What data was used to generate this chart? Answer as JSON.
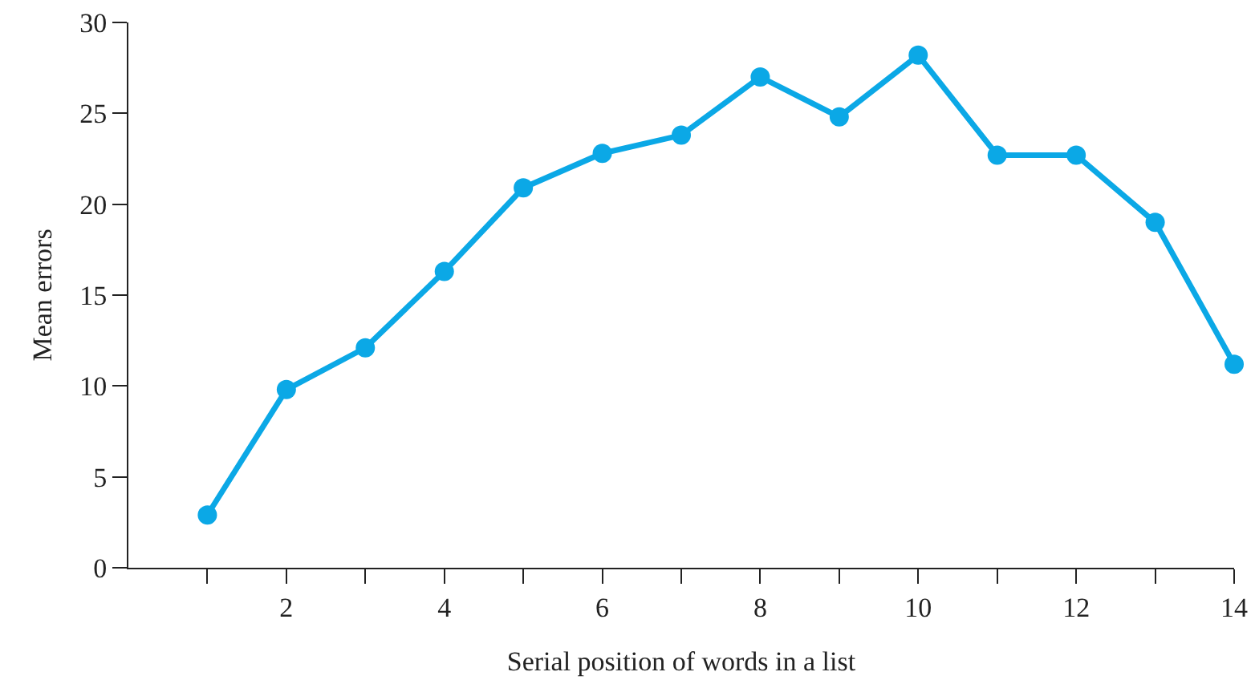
{
  "chart_data": {
    "type": "line",
    "xlabel": "Serial position of words in a list",
    "ylabel": "Mean errors",
    "x": [
      1,
      2,
      3,
      4,
      5,
      6,
      7,
      8,
      9,
      10,
      11,
      12,
      13,
      14
    ],
    "series": [
      {
        "color": "#0ba8e6",
        "values": [
          2.9,
          9.8,
          12.1,
          16.3,
          20.9,
          22.8,
          23.8,
          27.0,
          24.8,
          28.2,
          22.7,
          22.7,
          19.0,
          11.2
        ]
      }
    ],
    "xlim": [
      0,
      14
    ],
    "xticks": [
      {
        "value": 1,
        "label": null
      },
      2,
      {
        "value": 3,
        "label": null
      },
      4,
      {
        "value": 5,
        "label": null
      },
      6,
      {
        "value": 7,
        "label": null
      },
      8,
      {
        "value": 9,
        "label": null
      },
      10,
      {
        "value": 11,
        "label": null
      },
      12,
      {
        "value": 13,
        "label": null
      },
      14
    ],
    "ylim": [
      0,
      30
    ],
    "yticks": [
      0,
      5,
      10,
      15,
      20,
      25,
      30
    ],
    "grid": false,
    "legend": false,
    "marker": "circle",
    "line_style": "solid"
  }
}
